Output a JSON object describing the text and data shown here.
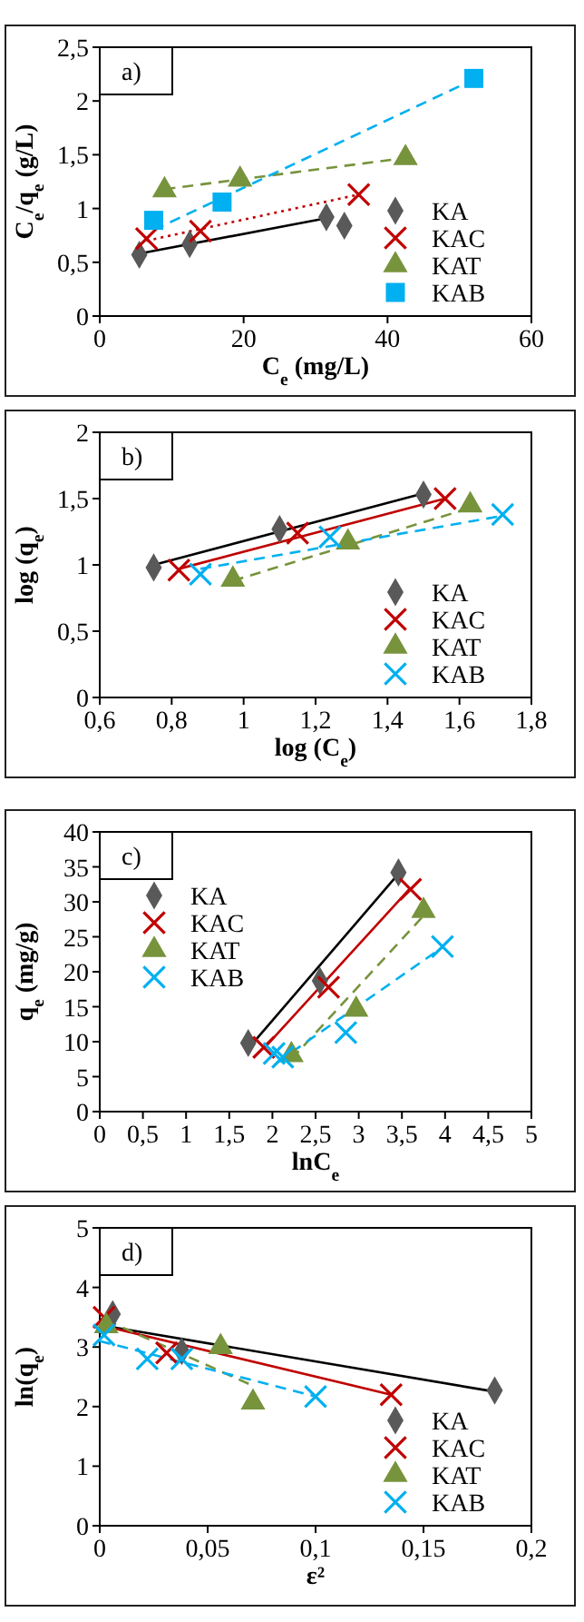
{
  "chart_data": [
    {
      "type": "scatter",
      "annotations": [
        "a)"
      ],
      "xlabel": "C$_{e}$ (mg/L)",
      "ylabel": "C$_{e}$/q$_{e}$ (g/L)",
      "xlim": [
        0,
        60
      ],
      "xticks": [
        0,
        20,
        40,
        60
      ],
      "ylim": [
        0,
        2.5
      ],
      "yticks": [
        0,
        {
          "value": 0.5,
          "label": "0,5"
        },
        1,
        {
          "value": 1.5,
          "label": "1,5"
        },
        2,
        {
          "value": 2.5,
          "label": "2,5"
        }
      ],
      "legend": "bottom right",
      "series": [
        {
          "type": "line",
          "color": "#000000",
          "line_style": "solid",
          "x": [
            5.5,
            31.5
          ],
          "values": [
            0.58,
            0.91
          ]
        },
        {
          "type": "line",
          "color": "#c00000",
          "line_style": "dotted",
          "x": [
            6.5,
            36
          ],
          "values": [
            0.7,
            1.13
          ]
        },
        {
          "type": "line",
          "color": "#77933c",
          "line_style": "dashed",
          "x": [
            9,
            42.5
          ],
          "values": [
            1.18,
            1.47
          ]
        },
        {
          "type": "line",
          "color": "#00b0f0",
          "line_style": "dashed",
          "x": [
            7.5,
            52
          ],
          "values": [
            0.8,
            2.2
          ]
        },
        {
          "name": "KA",
          "color": "#595959",
          "marker": "diamond",
          "x": [
            5.5,
            12.5,
            31.5,
            34
          ],
          "values": [
            0.57,
            0.67,
            0.92,
            0.84
          ]
        },
        {
          "name": "KAC",
          "color": "#c00000",
          "marker": "cross",
          "x": [
            6.5,
            14,
            36
          ],
          "values": [
            0.72,
            0.79,
            1.13
          ]
        },
        {
          "name": "KAT",
          "color": "#77933c",
          "marker": "triangle",
          "x": [
            9,
            19.5,
            42.5
          ],
          "values": [
            1.17,
            1.27,
            1.47
          ]
        },
        {
          "name": "KAB",
          "color": "#00b0f0",
          "marker": "square",
          "x": [
            7.5,
            17,
            52
          ],
          "values": [
            0.89,
            1.06,
            2.21
          ]
        }
      ]
    },
    {
      "type": "scatter",
      "annotations": [
        "b)"
      ],
      "xlabel": "log (C$_{e}$)",
      "ylabel": "log (q$_{e}$)",
      "xlim": [
        0.6,
        1.8
      ],
      "xticks": [
        {
          "value": 0.6,
          "label": "0,6"
        },
        {
          "value": 0.8,
          "label": "0,8"
        },
        1,
        {
          "value": 1.2,
          "label": "1,2"
        },
        {
          "value": 1.4,
          "label": "1,4"
        },
        {
          "value": 1.6,
          "label": "1,6"
        },
        {
          "value": 1.8,
          "label": "1,8"
        }
      ],
      "ylim": [
        0,
        2
      ],
      "yticks": [
        0,
        {
          "value": 0.5,
          "label": "0,5"
        },
        1,
        {
          "value": 1.5,
          "label": "1,5"
        },
        2
      ],
      "legend": "bottom right",
      "series": [
        {
          "type": "line",
          "color": "#000000",
          "line_style": "solid",
          "x": [
            0.75,
            1.5
          ],
          "values": [
            1.0,
            1.54
          ]
        },
        {
          "type": "line",
          "color": "#c00000",
          "line_style": "solid",
          "x": [
            0.82,
            1.56
          ],
          "values": [
            0.97,
            1.5
          ]
        },
        {
          "type": "line",
          "color": "#77933c",
          "line_style": "dashed",
          "x": [
            0.97,
            1.63
          ],
          "values": [
            0.88,
            1.43
          ]
        },
        {
          "type": "line",
          "color": "#00b0f0",
          "line_style": "dashed",
          "x": [
            0.88,
            1.72
          ],
          "values": [
            0.97,
            1.37
          ]
        },
        {
          "name": "KA",
          "color": "#595959",
          "marker": "diamond",
          "x": [
            0.75,
            1.1,
            1.5
          ],
          "values": [
            0.98,
            1.27,
            1.53
          ]
        },
        {
          "name": "KAC",
          "color": "#c00000",
          "marker": "cross",
          "x": [
            0.82,
            1.15,
            1.56
          ],
          "values": [
            0.96,
            1.24,
            1.5
          ]
        },
        {
          "name": "KAT",
          "color": "#77933c",
          "marker": "triangle",
          "x": [
            0.97,
            1.29,
            1.63
          ],
          "values": [
            0.89,
            1.17,
            1.45
          ]
        },
        {
          "name": "KAB",
          "color": "#00b0f0",
          "marker": "cross",
          "x": [
            0.88,
            1.24,
            1.72
          ],
          "values": [
            0.93,
            1.21,
            1.38
          ]
        }
      ]
    },
    {
      "type": "scatter",
      "annotations": [
        "c)"
      ],
      "xlabel": "lnC$_{e}$",
      "ylabel": "q$_{e}$ (mg/g)",
      "xlim": [
        0,
        5
      ],
      "xticks": [
        0,
        {
          "value": 0.5,
          "label": "0,5"
        },
        1,
        {
          "value": 1.5,
          "label": "1,5"
        },
        2,
        {
          "value": 2.5,
          "label": "2,5"
        },
        3,
        {
          "value": 3.5,
          "label": "3,5"
        },
        4,
        {
          "value": 4.5,
          "label": "4,5"
        },
        5
      ],
      "ylim": [
        0,
        40
      ],
      "yticks": [
        0,
        5,
        10,
        15,
        20,
        25,
        30,
        35,
        40
      ],
      "legend": "top left",
      "series": [
        {
          "type": "line",
          "color": "#000000",
          "line_style": "solid",
          "x": [
            1.72,
            3.46
          ],
          "values": [
            9,
            34
          ]
        },
        {
          "type": "line",
          "color": "#c00000",
          "line_style": "solid",
          "x": [
            1.9,
            3.6
          ],
          "values": [
            9,
            32
          ]
        },
        {
          "type": "line",
          "color": "#77933c",
          "line_style": "dashed",
          "x": [
            2.22,
            3.75
          ],
          "values": [
            7.5,
            28
          ]
        },
        {
          "type": "line",
          "color": "#00b0f0",
          "line_style": "dashed",
          "x": [
            2.05,
            3.97
          ],
          "values": [
            7,
            23.5
          ]
        },
        {
          "name": "KA",
          "color": "#595959",
          "marker": "diamond",
          "x": [
            1.72,
            2.55,
            3.46
          ],
          "values": [
            9.8,
            18.7,
            34.2
          ]
        },
        {
          "name": "KAC",
          "color": "#c00000",
          "marker": "cross",
          "x": [
            1.9,
            2.65,
            3.6
          ],
          "values": [
            9.2,
            17.8,
            31.8
          ]
        },
        {
          "name": "KAT",
          "color": "#77933c",
          "marker": "triangle",
          "x": [
            2.22,
            2.97,
            3.75
          ],
          "values": [
            8.1,
            14.6,
            28.7
          ]
        },
        {
          "name": "KAB",
          "color": "#00b0f0",
          "marker": "cross",
          "x": [
            2.02,
            2.12,
            2.85,
            3.97
          ],
          "values": [
            8.3,
            7.8,
            11.3,
            23.6
          ]
        }
      ]
    },
    {
      "type": "scatter",
      "annotations": [
        "d)"
      ],
      "xlabel": "ε²",
      "ylabel": "ln(q$_{e}$)",
      "xlim": [
        0,
        0.2
      ],
      "xticks": [
        0,
        {
          "value": 0.05,
          "label": "0,05"
        },
        {
          "value": 0.1,
          "label": "0,1"
        },
        {
          "value": 0.15,
          "label": "0,15"
        },
        {
          "value": 0.2,
          "label": "0,2"
        }
      ],
      "ylim": [
        0,
        5
      ],
      "yticks": [
        0,
        1,
        2,
        3,
        4,
        5
      ],
      "legend": "bottom right",
      "series": [
        {
          "type": "line",
          "color": "#000000",
          "line_style": "solid",
          "x": [
            0,
            0.183
          ],
          "values": [
            3.37,
            2.25
          ]
        },
        {
          "type": "line",
          "color": "#c00000",
          "line_style": "solid",
          "x": [
            0,
            0.135
          ],
          "values": [
            3.37,
            2.2
          ]
        },
        {
          "type": "line",
          "color": "#77933c",
          "line_style": "dashed",
          "x": [
            0.003,
            0.071
          ],
          "values": [
            3.45,
            2.35
          ]
        },
        {
          "type": "line",
          "color": "#00b0f0",
          "line_style": "dashed",
          "x": [
            0,
            0.1
          ],
          "values": [
            3.1,
            2.17
          ]
        },
        {
          "name": "KA",
          "color": "#595959",
          "marker": "diamond",
          "x": [
            0.006,
            0.038,
            0.183
          ],
          "values": [
            3.55,
            2.93,
            2.27
          ]
        },
        {
          "name": "KAC",
          "color": "#c00000",
          "marker": "cross",
          "x": [
            0.002,
            0.031,
            0.135
          ],
          "values": [
            3.5,
            2.9,
            2.2
          ]
        },
        {
          "name": "KAT",
          "color": "#77933c",
          "marker": "triangle",
          "x": [
            0.003,
            0.056,
            0.071
          ],
          "values": [
            3.35,
            3.0,
            2.07
          ]
        },
        {
          "name": "KAB",
          "color": "#00b0f0",
          "marker": "cross",
          "x": [
            0.002,
            0.022,
            0.038,
            0.1
          ],
          "values": [
            3.2,
            2.8,
            2.8,
            2.17
          ]
        }
      ]
    }
  ]
}
